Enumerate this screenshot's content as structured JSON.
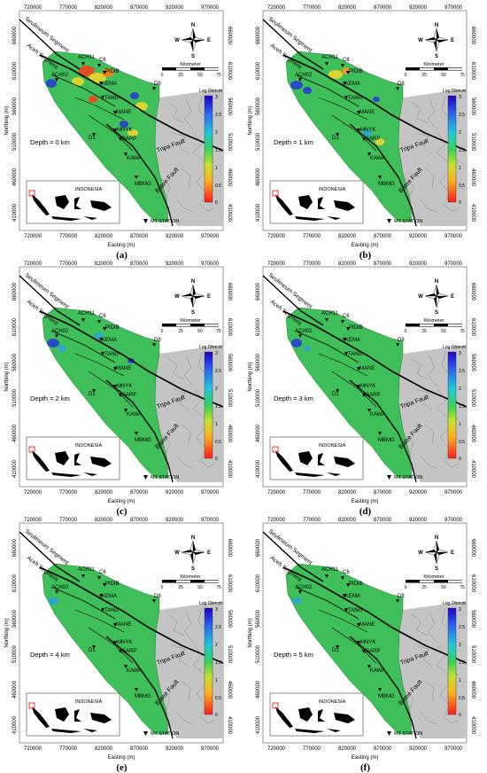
{
  "colors": {
    "land": "#3fbf5a",
    "land_light": "#7fdc5c",
    "relief": "#bdbdbd",
    "conductive": "#ff3b1f",
    "intermediate": "#f3d82a",
    "resistive": "#2836d8",
    "fault": "#000000"
  },
  "axes": {
    "x_ticks": [
      "720000",
      "770000",
      "820000",
      "870000",
      "920000",
      "970000"
    ],
    "y_ticks": [
      "660000",
      "610000",
      "560000",
      "510000",
      "460000",
      "410000"
    ],
    "y_ticks_right": [
      "660000",
      "610000",
      "560000",
      "510000",
      "460000",
      "410000"
    ],
    "xlabel": "Easting (m)",
    "ylabel": "Northing (m)"
  },
  "compass": {
    "n": "N",
    "s": "S",
    "e": "E",
    "w": "W"
  },
  "scalebar": {
    "title": "Kilometer",
    "labels": [
      "0",
      "25",
      "50",
      "75"
    ]
  },
  "colorbar": {
    "title": "Log Ohm.m",
    "labels": [
      "3",
      "2.5",
      "2",
      "1.5",
      "1",
      "0.5",
      "0"
    ],
    "values": [
      3,
      2.5,
      2,
      1.5,
      1,
      0.5,
      0
    ]
  },
  "faults": {
    "seulimeum": "Seulimeum Segment",
    "aceh": "Aceh Segment",
    "tripa": "Tripa Fault",
    "batee": "Batee Fault"
  },
  "stations": [
    "ACH11",
    "C6",
    "PIDIB",
    "ACH02",
    "KEMA",
    "D8",
    "TANG",
    "MANE",
    "MNYK",
    "SARP",
    "D1",
    "KAWA",
    "MBMG"
  ],
  "inset": {
    "label": "INDONESIA"
  },
  "legend": {
    "mt_station": "MT STATION"
  },
  "panels": [
    {
      "letter": "(a)",
      "depth": "Depth = 0 km"
    },
    {
      "letter": "(b)",
      "depth": "Depth = 1 km"
    },
    {
      "letter": "(c)",
      "depth": "Depth = 2 km"
    },
    {
      "letter": "(d)",
      "depth": "Depth = 3 km"
    },
    {
      "letter": "(e)",
      "depth": "Depth = 4 km"
    },
    {
      "letter": "(f)",
      "depth": "Depth = 5 km"
    }
  ]
}
